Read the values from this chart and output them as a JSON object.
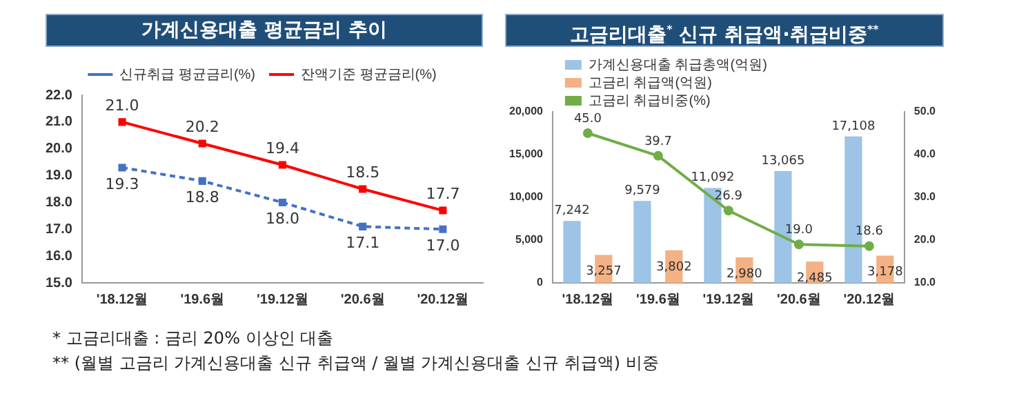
{
  "chart_data": [
    {
      "type": "line",
      "title": "가계신용대출 평균금리 추이",
      "categories": [
        "'18.12월",
        "'19.6월",
        "'19.12월",
        "'20.6월",
        "'20.12월"
      ],
      "series": [
        {
          "name": "신규취급 평균금리(%)",
          "color": "#4472c4",
          "line_style": "dashed",
          "values": [
            19.3,
            18.8,
            18.0,
            17.1,
            17.0
          ],
          "value_labels": [
            "19.3",
            "18.8",
            "18.0",
            "17.1",
            "17.0"
          ]
        },
        {
          "name": "잔액기준 평균금리(%)",
          "color": "#ff0000",
          "line_style": "solid",
          "values": [
            21.0,
            20.2,
            19.4,
            18.5,
            17.7
          ],
          "value_labels": [
            "21.0",
            "20.2",
            "19.4",
            "18.5",
            "17.7"
          ]
        }
      ],
      "ylim": [
        15,
        22
      ],
      "yticks": [
        {
          "value": 15,
          "label": "15.0"
        },
        {
          "value": 16,
          "label": "16.0"
        },
        {
          "value": 17,
          "label": "17.0"
        },
        {
          "value": 18,
          "label": "18.0"
        },
        {
          "value": 19,
          "label": "19.0"
        },
        {
          "value": 20,
          "label": "20.0"
        },
        {
          "value": 21,
          "label": "21.0"
        },
        {
          "value": 22,
          "label": "22.0"
        }
      ],
      "grid": false,
      "legend": "top",
      "marker": "square"
    },
    {
      "type": "bar",
      "title": "고금리대출$^{*}$ 신규 취급액·취급비중$^{**}$",
      "categories": [
        "'18.12월",
        "'19.6월",
        "'19.12월",
        "'20.6월",
        "'20.12월"
      ],
      "series": [
        {
          "name": "가계신용대출 취급총액(억원)",
          "color": "#9dc3e6",
          "values": [
            7242,
            9579,
            11092,
            13065,
            17108
          ],
          "value_labels": [
            "7,242",
            "9,579",
            "11,092",
            "13,065",
            "17,108"
          ]
        },
        {
          "name": "고금리 취급액(억원)",
          "color": "#f4b183",
          "values": [
            3257,
            3802,
            2980,
            2485,
            3178
          ],
          "value_labels": [
            "3,257",
            "3,802",
            "2,980",
            "2,485",
            "3,178"
          ]
        },
        {
          "name": "고금리 취급비중(%)",
          "type": "line",
          "axis": "y2",
          "color": "#70ad47",
          "values": [
            45.0,
            39.7,
            26.9,
            19.0,
            18.6
          ],
          "value_labels": [
            "45.0",
            "39.7",
            "26.9",
            "19.0",
            "18.6"
          ]
        }
      ],
      "ylim": [
        0,
        20000
      ],
      "yticks": [
        0,
        {
          "value": 5000,
          "label": "5,000"
        },
        {
          "value": 10000,
          "label": "10,000"
        },
        {
          "value": 15000,
          "label": "15,000"
        },
        {
          "value": 20000,
          "label": "20,000"
        }
      ],
      "y2lim": [
        10,
        50
      ],
      "y2ticks": [
        {
          "value": 10,
          "label": "10.0"
        },
        {
          "value": 20,
          "label": "20.0"
        },
        {
          "value": 30,
          "label": "30.0"
        },
        {
          "value": 40,
          "label": "40.0"
        },
        {
          "value": 50,
          "label": "50.0"
        }
      ],
      "grid": false,
      "legend": "top left",
      "marker": "circle",
      "annotations": [
        "* 고금리대출 : 금리 20% 이상인 대출",
        "** (월별 고금리 가계신용대출 신규 취급액 / 월별 가계신용대출 신규 취급액) 비중"
      ]
    }
  ]
}
